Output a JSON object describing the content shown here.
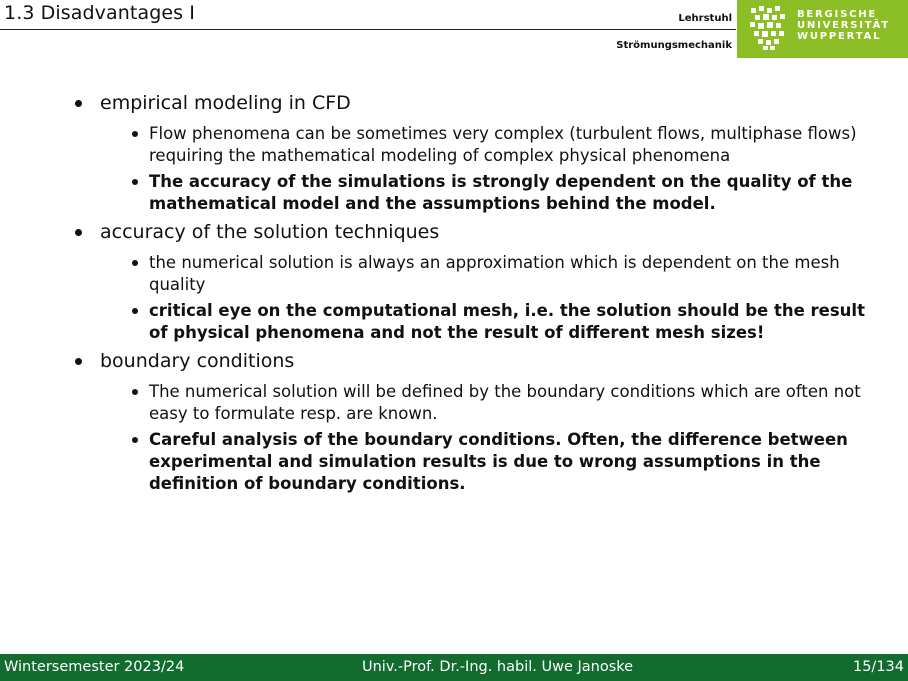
{
  "header": {
    "title": "1.3 Disadvantages I",
    "chair_line1": "Lehrstuhl",
    "chair_line2": "Strömungsmechanik",
    "university": [
      "BERGISCHE",
      "UNIVERSITÄT",
      "WUPPERTAL"
    ],
    "logo_color": "#8cbf26"
  },
  "items": [
    {
      "text": "empirical modeling in CFD",
      "sub": [
        {
          "text": "Flow phenomena can be sometimes very complex (turbulent flows, multiphase flows) requiring the mathematical modeling of complex physical phenomena",
          "bold": false
        },
        {
          "text": "The accuracy of the simulations is strongly dependent on the quality of the mathematical model and the assumptions behind the model.",
          "bold": true
        }
      ]
    },
    {
      "text": "accuracy of the solution techniques",
      "sub": [
        {
          "text": "the numerical solution is always an approximation which is dependent on the mesh quality",
          "bold": false
        },
        {
          "text": "critical eye on the computational mesh, i.e. the solution should be the result of physical phenomena and not the result of different mesh sizes!",
          "bold": true
        }
      ]
    },
    {
      "text": "boundary conditions",
      "sub": [
        {
          "text": "The numerical solution will be defined by the boundary conditions which are often not easy to formulate resp. are known.",
          "bold": false
        },
        {
          "text": "Careful analysis of the boundary conditions. Often, the difference between experimental and simulation results is due to wrong assumptions in the definition of boundary conditions.",
          "bold": true
        }
      ]
    }
  ],
  "footer": {
    "semester": "Wintersemester 2023/24",
    "author": "Univ.-Prof. Dr.-Ing. habil. Uwe Janoske",
    "page": "15/134",
    "color": "#126c2e"
  }
}
